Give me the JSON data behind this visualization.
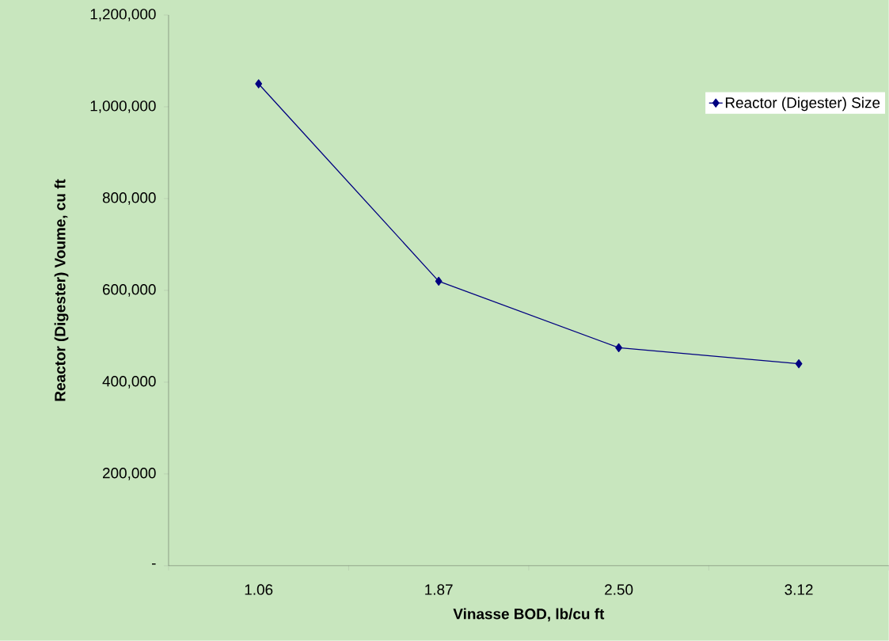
{
  "chart_data": {
    "type": "line",
    "xlabel": "Vinasse BOD, lb/cu ft",
    "ylabel": "Reactor (Digester) Voume,  cu ft",
    "categories": [
      "1.06",
      "1.87",
      "2.50",
      "3.12"
    ],
    "series": [
      {
        "name": "Reactor (Digester) Size",
        "color": "#000080",
        "values": [
          1050000,
          620000,
          475000,
          440000
        ]
      }
    ],
    "ylim": [
      0,
      1200000
    ],
    "yticks": [
      {
        "value": 0,
        "label": "-"
      },
      {
        "value": 200000,
        "label": "200,000"
      },
      {
        "value": 400000,
        "label": "400,000"
      },
      {
        "value": 600000,
        "label": "600,000"
      },
      {
        "value": 800000,
        "label": "800,000"
      },
      {
        "value": 1000000,
        "label": "1,000,000"
      },
      {
        "value": 1200000,
        "label": "1,200,000"
      }
    ],
    "grid": false,
    "legend": "top right",
    "marker": "diamond",
    "line_style": "solid"
  }
}
